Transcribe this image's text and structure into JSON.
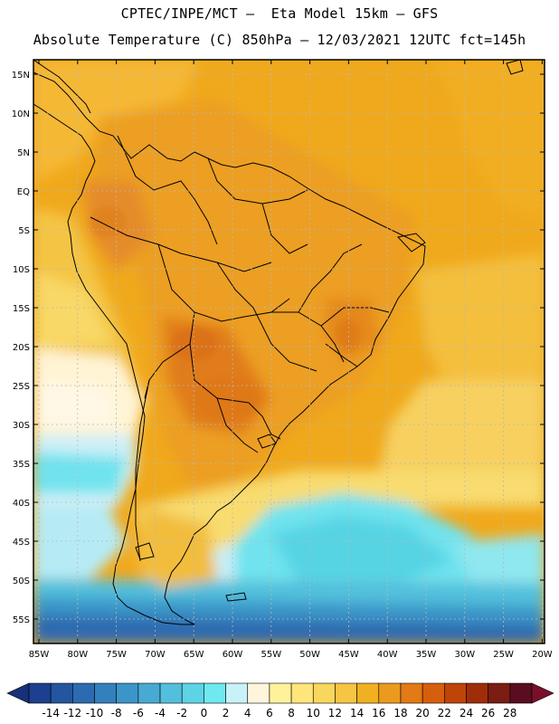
{
  "header": {
    "line1": "CPTEC/INPE/MCT –  Eta Model 15km – GFS",
    "line2": "Absolute Temperature (C) 850hPa – 12/03/2021 12UTC fct=145h"
  },
  "map": {
    "lat_labels": [
      "15N",
      "10N",
      "5N",
      "EQ",
      "5S",
      "10S",
      "15S",
      "20S",
      "25S",
      "30S",
      "35S",
      "40S",
      "45S",
      "50S",
      "55S"
    ],
    "lon_labels": [
      "85W",
      "80W",
      "75W",
      "70W",
      "65W",
      "60W",
      "55W",
      "50W",
      "45W",
      "40W",
      "35W",
      "30W",
      "25W",
      "20W"
    ],
    "gridlines": true
  },
  "colorbar": {
    "labels": [
      "-14",
      "-12",
      "-10",
      "-8",
      "-6",
      "-4",
      "-2",
      "0",
      "2",
      "4",
      "6",
      "8",
      "10",
      "12",
      "14",
      "16",
      "18",
      "20",
      "22",
      "24",
      "26",
      "28"
    ],
    "colors": [
      "#1c3f8f",
      "#2456a0",
      "#2d6bb0",
      "#3380bd",
      "#3b95c8",
      "#47aad2",
      "#52bfdc",
      "#5dd4e6",
      "#6ee9ef",
      "#c9f2f8",
      "#fff5dc",
      "#fff29a",
      "#ffe57a",
      "#f9d65c",
      "#f5c543",
      "#f0b020",
      "#ec9a1e",
      "#e27a15",
      "#d65f0e",
      "#bf4408",
      "#a02d0a",
      "#7a1d12",
      "#5a0d1e"
    ],
    "low_end_color": "#17307a",
    "high_end_color": "#7a0f2a"
  }
}
